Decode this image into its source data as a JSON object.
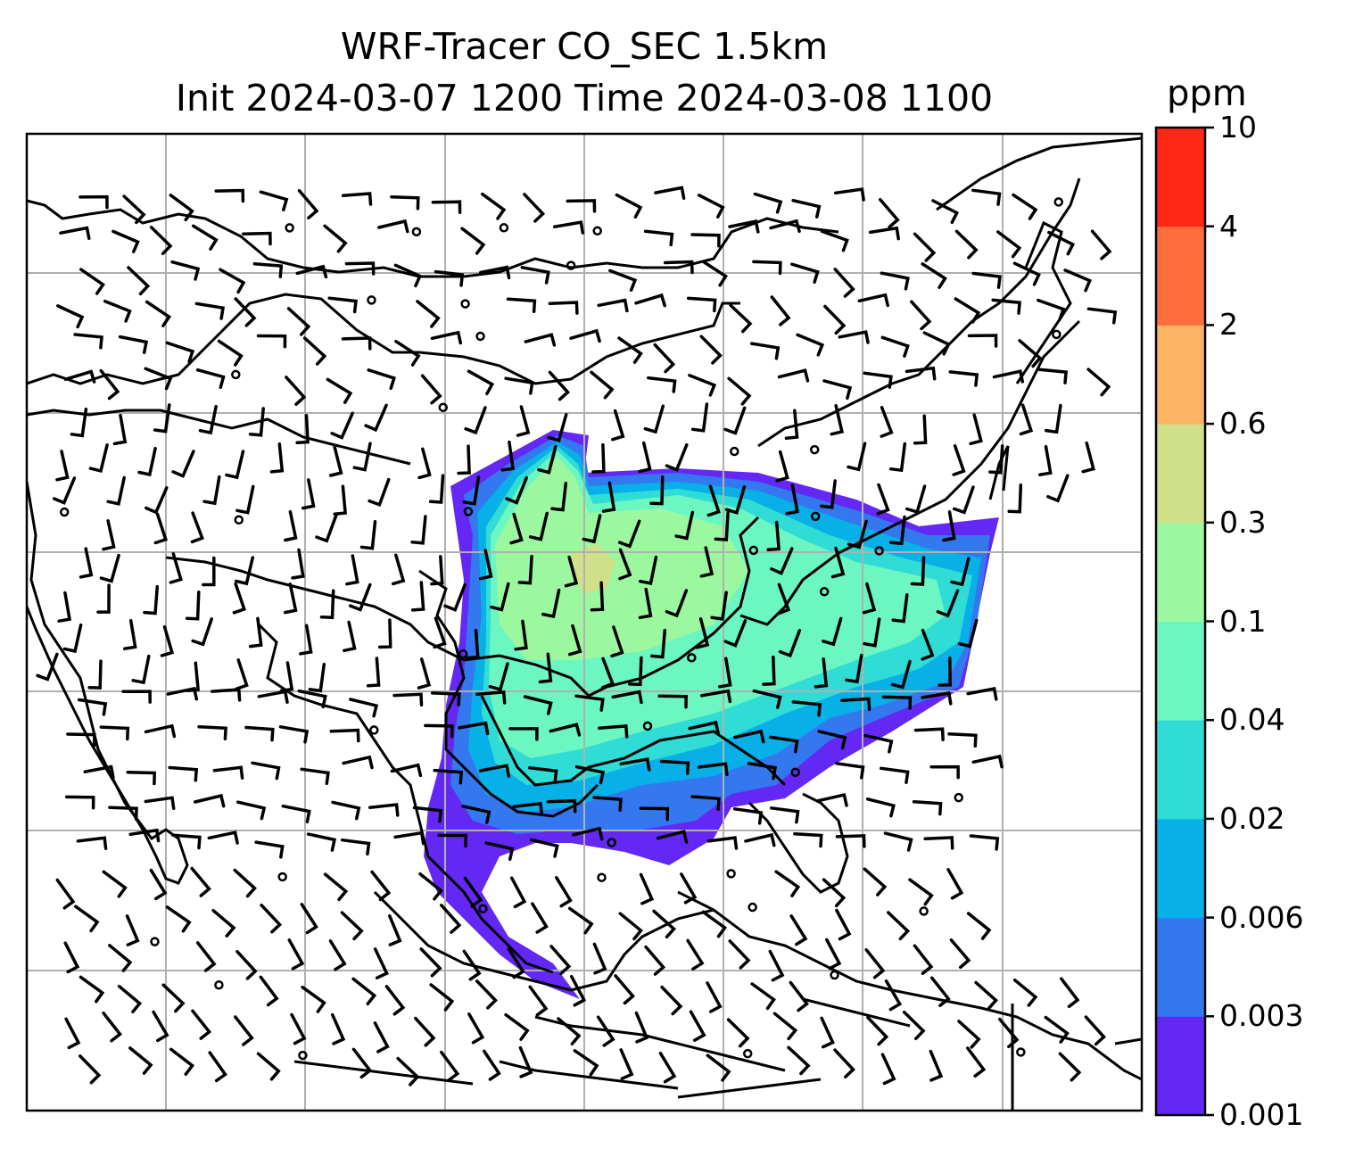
{
  "title": {
    "line1": "WRF-Tracer CO_SEC 1.5km",
    "line2": "Init 2024-03-07 1200 Time 2024-03-08 1100"
  },
  "colorbar": {
    "units": "ppm",
    "tick_labels": [
      "10",
      "4",
      "2",
      "0.6",
      "0.3",
      "0.1",
      "0.04",
      "0.02",
      "0.006",
      "0.003",
      "0.001"
    ],
    "colors_bottom_to_top": [
      "#6428f5",
      "#3478f0",
      "#08b0e8",
      "#30dcd6",
      "#6cf6c2",
      "#9cf89e",
      "#d0e088",
      "#fcb464",
      "#fe6e3c",
      "#fe2816"
    ]
  },
  "map": {
    "gridlines": true,
    "coastlines": true,
    "wind_barbs": true,
    "field": "CO_SEC tracer concentration"
  }
}
